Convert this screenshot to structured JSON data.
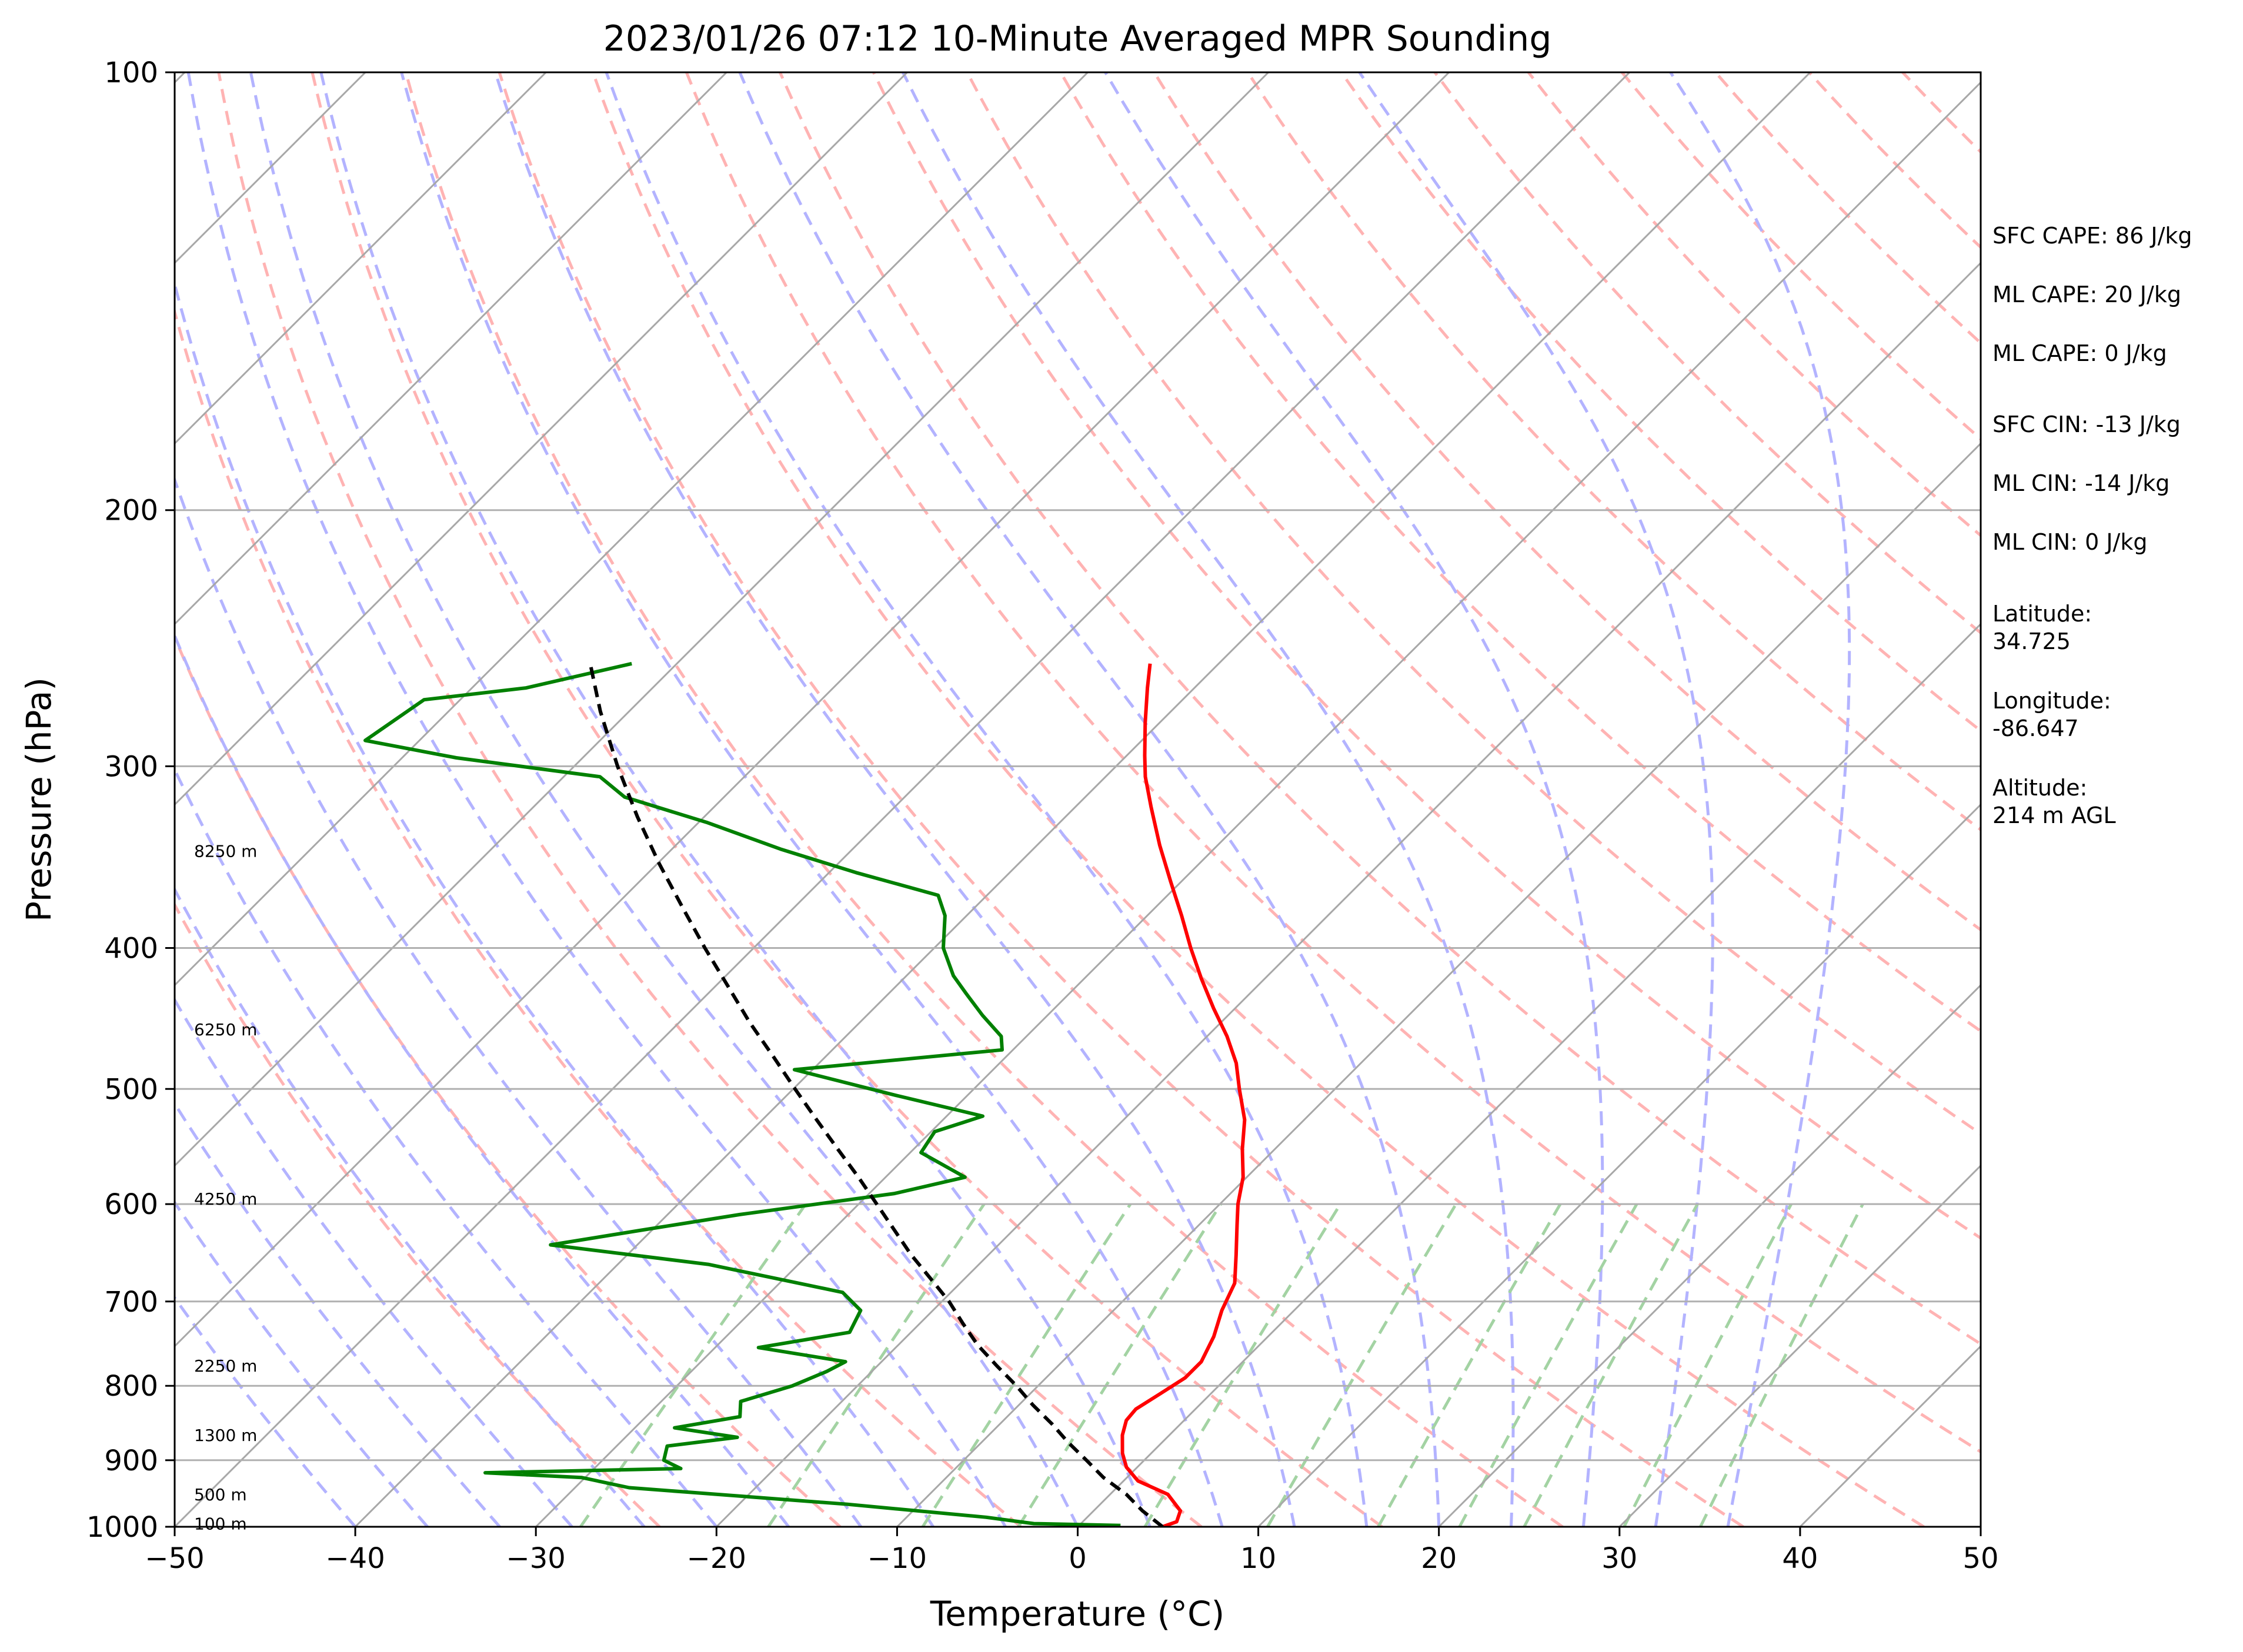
{
  "chart_data": {
    "type": "line",
    "title": "2023/01/26 07:12 10-Minute Averaged MPR Sounding",
    "xlabel": "Temperature (°C)",
    "ylabel": "Pressure (hPa)",
    "x_range": [
      -50,
      50
    ],
    "y_range": [
      1000,
      100
    ],
    "y_scale": "log",
    "skew": true,
    "grid": true,
    "x_ticks": [
      -50,
      -40,
      -30,
      -20,
      -10,
      0,
      10,
      20,
      30,
      40,
      50
    ],
    "x_tick_labels": [
      "−50",
      "−40",
      "−30",
      "−20",
      "−10",
      "0",
      "10",
      "20",
      "30",
      "40",
      "50"
    ],
    "y_ticks": [
      1000,
      900,
      800,
      700,
      600,
      500,
      400,
      300,
      200,
      100
    ],
    "y_tick_labels": [
      "1000",
      "900",
      "800",
      "700",
      "600",
      "500",
      "400",
      "300",
      "200",
      "100"
    ],
    "background_lines": {
      "isotherms_color": "#a8a8a8",
      "dry_adiabats_color": "#ffb3b3",
      "moist_adiabats_color": "#b3b3ff",
      "mixing_ratio_color": "#a3d3a3"
    },
    "height_labels": [
      {
        "text": "100 m",
        "p": 995
      },
      {
        "text": "500 m",
        "p": 950
      },
      {
        "text": "1300 m",
        "p": 865
      },
      {
        "text": "2250 m",
        "p": 775
      },
      {
        "text": "4250 m",
        "p": 595
      },
      {
        "text": "6250 m",
        "p": 455
      },
      {
        "text": "8250 m",
        "p": 343
      }
    ],
    "series": [
      {
        "kind": "temperature",
        "color": "#ff0000",
        "points": [
          {
            "p": 1000,
            "t": 4.7
          },
          {
            "p": 992,
            "t": 5.2
          },
          {
            "p": 975,
            "t": 4.8
          },
          {
            "p": 950,
            "t": 3.2
          },
          {
            "p": 930,
            "t": 0.8
          },
          {
            "p": 910,
            "t": -0.6
          },
          {
            "p": 890,
            "t": -1.6
          },
          {
            "p": 865,
            "t": -2.6
          },
          {
            "p": 845,
            "t": -3.2
          },
          {
            "p": 830,
            "t": -3.3
          },
          {
            "p": 810,
            "t": -2.8
          },
          {
            "p": 790,
            "t": -2.3
          },
          {
            "p": 770,
            "t": -2.3
          },
          {
            "p": 740,
            "t": -3.0
          },
          {
            "p": 710,
            "t": -4.0
          },
          {
            "p": 680,
            "t": -4.8
          },
          {
            "p": 650,
            "t": -6.3
          },
          {
            "p": 620,
            "t": -7.9
          },
          {
            "p": 600,
            "t": -9.0
          },
          {
            "p": 575,
            "t": -10.2
          },
          {
            "p": 550,
            "t": -11.8
          },
          {
            "p": 525,
            "t": -13.3
          },
          {
            "p": 500,
            "t": -15.3
          },
          {
            "p": 480,
            "t": -16.9
          },
          {
            "p": 460,
            "t": -18.9
          },
          {
            "p": 440,
            "t": -21.2
          },
          {
            "p": 420,
            "t": -23.5
          },
          {
            "p": 400,
            "t": -25.8
          },
          {
            "p": 380,
            "t": -28.1
          },
          {
            "p": 360,
            "t": -30.6
          },
          {
            "p": 340,
            "t": -33.2
          },
          {
            "p": 320,
            "t": -35.8
          },
          {
            "p": 305,
            "t": -37.8
          },
          {
            "p": 295,
            "t": -39.0
          },
          {
            "p": 280,
            "t": -40.8
          },
          {
            "p": 265,
            "t": -42.6
          },
          {
            "p": 255,
            "t": -43.8
          }
        ]
      },
      {
        "kind": "dewpoint",
        "color": "#008000",
        "points": [
          {
            "p": 998,
            "t": 2.3
          },
          {
            "p": 995,
            "t": -2.6
          },
          {
            "p": 985,
            "t": -5.6
          },
          {
            "p": 965,
            "t": -14.0
          },
          {
            "p": 940,
            "t": -27.0
          },
          {
            "p": 925,
            "t": -30.2
          },
          {
            "p": 918,
            "t": -35.8
          },
          {
            "p": 912,
            "t": -25.2
          },
          {
            "p": 900,
            "t": -26.6
          },
          {
            "p": 880,
            "t": -27.2
          },
          {
            "p": 868,
            "t": -23.8
          },
          {
            "p": 855,
            "t": -27.8
          },
          {
            "p": 840,
            "t": -24.8
          },
          {
            "p": 820,
            "t": -25.6
          },
          {
            "p": 800,
            "t": -23.6
          },
          {
            "p": 782,
            "t": -22.5
          },
          {
            "p": 770,
            "t": -22.0
          },
          {
            "p": 753,
            "t": -27.6
          },
          {
            "p": 735,
            "t": -23.4
          },
          {
            "p": 710,
            "t": -24.0
          },
          {
            "p": 690,
            "t": -26.0
          },
          {
            "p": 660,
            "t": -35.0
          },
          {
            "p": 640,
            "t": -44.8
          },
          {
            "p": 625,
            "t": -40.5
          },
          {
            "p": 610,
            "t": -36.0
          },
          {
            "p": 590,
            "t": -28.6
          },
          {
            "p": 575,
            "t": -25.6
          },
          {
            "p": 553,
            "t": -29.4
          },
          {
            "p": 535,
            "t": -29.8
          },
          {
            "p": 522,
            "t": -28.0
          },
          {
            "p": 505,
            "t": -34.0
          },
          {
            "p": 485,
            "t": -41.0
          },
          {
            "p": 470,
            "t": -30.6
          },
          {
            "p": 460,
            "t": -31.4
          },
          {
            "p": 445,
            "t": -33.6
          },
          {
            "p": 430,
            "t": -35.7
          },
          {
            "p": 418,
            "t": -37.4
          },
          {
            "p": 400,
            "t": -39.5
          },
          {
            "p": 380,
            "t": -41.2
          },
          {
            "p": 368,
            "t": -42.7
          },
          {
            "p": 355,
            "t": -48.5
          },
          {
            "p": 342,
            "t": -54.0
          },
          {
            "p": 328,
            "t": -59.5
          },
          {
            "p": 315,
            "t": -65.5
          },
          {
            "p": 305,
            "t": -68.0
          },
          {
            "p": 296,
            "t": -77.0
          },
          {
            "p": 288,
            "t": -83.0
          },
          {
            "p": 270,
            "t": -82.0
          },
          {
            "p": 265,
            "t": -77.0
          },
          {
            "p": 255,
            "t": -72.5
          }
        ]
      },
      {
        "kind": "parcel",
        "color": "#000000",
        "points": [
          {
            "p": 1000,
            "t": 4.7
          },
          {
            "p": 975,
            "t": 2.7
          },
          {
            "p": 950,
            "t": 0.9
          },
          {
            "p": 925,
            "t": -1.3
          },
          {
            "p": 900,
            "t": -3.2
          },
          {
            "p": 875,
            "t": -5.2
          },
          {
            "p": 850,
            "t": -7.1
          },
          {
            "p": 825,
            "t": -9.2
          },
          {
            "p": 800,
            "t": -11.2
          },
          {
            "p": 775,
            "t": -13.4
          },
          {
            "p": 750,
            "t": -15.6
          },
          {
            "p": 725,
            "t": -17.6
          },
          {
            "p": 700,
            "t": -19.6
          },
          {
            "p": 675,
            "t": -21.9
          },
          {
            "p": 650,
            "t": -24.3
          },
          {
            "p": 625,
            "t": -26.6
          },
          {
            "p": 600,
            "t": -29.0
          },
          {
            "p": 575,
            "t": -31.5
          },
          {
            "p": 550,
            "t": -34.2
          },
          {
            "p": 525,
            "t": -37.0
          },
          {
            "p": 500,
            "t": -39.9
          },
          {
            "p": 475,
            "t": -42.9
          },
          {
            "p": 450,
            "t": -46.1
          },
          {
            "p": 425,
            "t": -49.3
          },
          {
            "p": 400,
            "t": -52.7
          },
          {
            "p": 375,
            "t": -56.2
          },
          {
            "p": 350,
            "t": -59.9
          },
          {
            "p": 325,
            "t": -63.7
          },
          {
            "p": 300,
            "t": -67.6
          },
          {
            "p": 275,
            "t": -71.6
          },
          {
            "p": 255,
            "t": -74.8
          }
        ]
      }
    ]
  },
  "info_panel": {
    "lines": [
      "SFC CAPE: 86 J/kg",
      "ML CAPE: 20 J/kg",
      "ML CAPE: 0 J/kg",
      "SFC CIN: -13 J/kg",
      "ML CIN: -14 J/kg",
      "ML CIN: 0 J/kg",
      "Latitude:",
      "34.725",
      "Longitude:",
      "-86.647",
      "Altitude:",
      "214 m AGL"
    ]
  }
}
